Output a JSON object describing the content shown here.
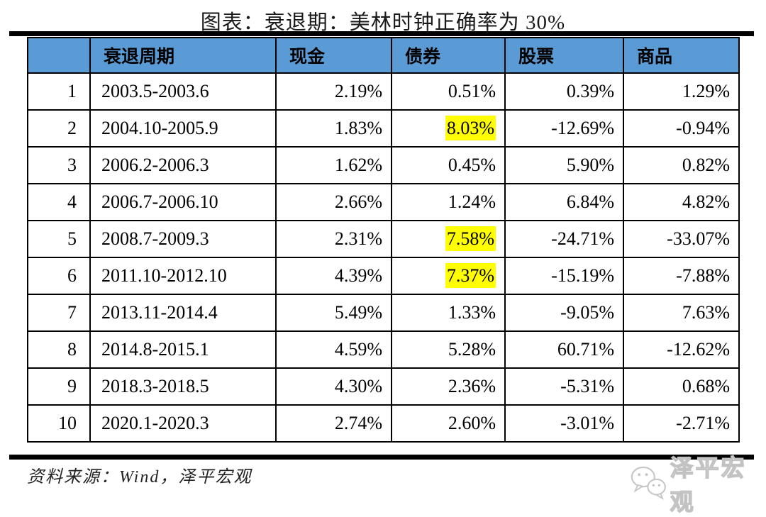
{
  "title": "图表：衰退期：美林时钟正确率为 30%",
  "colors": {
    "header_bg": "#5B9BD5",
    "highlight": "#FFFF00",
    "border": "#000000"
  },
  "chart_data": {
    "type": "table",
    "title": "图表：衰退期：美林时钟正确率为 30%",
    "columns": [
      "",
      "衰退周期",
      "现金",
      "债券",
      "股票",
      "商品"
    ],
    "rows": [
      {
        "index": "1",
        "period": "2003.5-2003.6",
        "cash": "2.19%",
        "bond": "0.51%",
        "stock": "0.39%",
        "commodity": "1.29%",
        "bond_highlight": false
      },
      {
        "index": "2",
        "period": "2004.10-2005.9",
        "cash": "1.83%",
        "bond": "8.03%",
        "stock": "-12.69%",
        "commodity": "-0.94%",
        "bond_highlight": true
      },
      {
        "index": "3",
        "period": "2006.2-2006.3",
        "cash": "1.62%",
        "bond": "0.45%",
        "stock": "5.90%",
        "commodity": "0.82%",
        "bond_highlight": false
      },
      {
        "index": "4",
        "period": "2006.7-2006.10",
        "cash": "2.66%",
        "bond": "1.24%",
        "stock": "6.84%",
        "commodity": "4.82%",
        "bond_highlight": false
      },
      {
        "index": "5",
        "period": "2008.7-2009.3",
        "cash": "2.31%",
        "bond": "7.58%",
        "stock": "-24.71%",
        "commodity": "-33.07%",
        "bond_highlight": true
      },
      {
        "index": "6",
        "period": "2011.10-2012.10",
        "cash": "4.39%",
        "bond": "7.37%",
        "stock": "-15.19%",
        "commodity": "-7.88%",
        "bond_highlight": true
      },
      {
        "index": "7",
        "period": "2013.11-2014.4",
        "cash": "5.49%",
        "bond": "1.33%",
        "stock": "-9.05%",
        "commodity": "7.63%",
        "bond_highlight": false
      },
      {
        "index": "8",
        "period": "2014.8-2015.1",
        "cash": "4.59%",
        "bond": "5.28%",
        "stock": "60.71%",
        "commodity": "-12.62%",
        "bond_highlight": false
      },
      {
        "index": "9",
        "period": "2018.3-2018.5",
        "cash": "4.30%",
        "bond": "2.36%",
        "stock": "-5.31%",
        "commodity": "0.68%",
        "bond_highlight": false
      },
      {
        "index": "10",
        "period": "2020.1-2020.3",
        "cash": "2.74%",
        "bond": "2.60%",
        "stock": "-3.01%",
        "commodity": "-2.71%",
        "bond_highlight": false
      }
    ],
    "highlight_note": "yellow highlight on bond column values",
    "source": "资料来源：Wind，泽平宏观"
  },
  "watermark": {
    "label": "泽平宏观"
  }
}
